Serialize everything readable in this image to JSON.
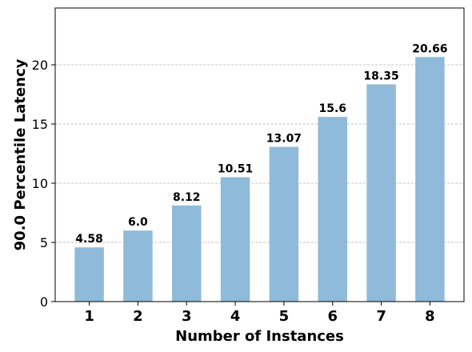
{
  "chart_data": {
    "type": "bar",
    "categories": [
      "1",
      "2",
      "3",
      "4",
      "5",
      "6",
      "7",
      "8"
    ],
    "values": [
      4.58,
      6.0,
      8.12,
      10.51,
      13.07,
      15.6,
      18.35,
      20.66
    ],
    "data_labels": [
      "4.58",
      "6.0",
      "8.12",
      "10.51",
      "13.07",
      "15.6",
      "18.35",
      "20.66"
    ],
    "xlabel": "Number of Instances",
    "ylabel": "90.0 Percentile Latency",
    "ylim": [
      0,
      24.8
    ],
    "yticks": [
      0,
      5,
      10,
      15,
      20
    ],
    "grid": "horizontal dashed",
    "bar_color": "#8fbad9"
  }
}
